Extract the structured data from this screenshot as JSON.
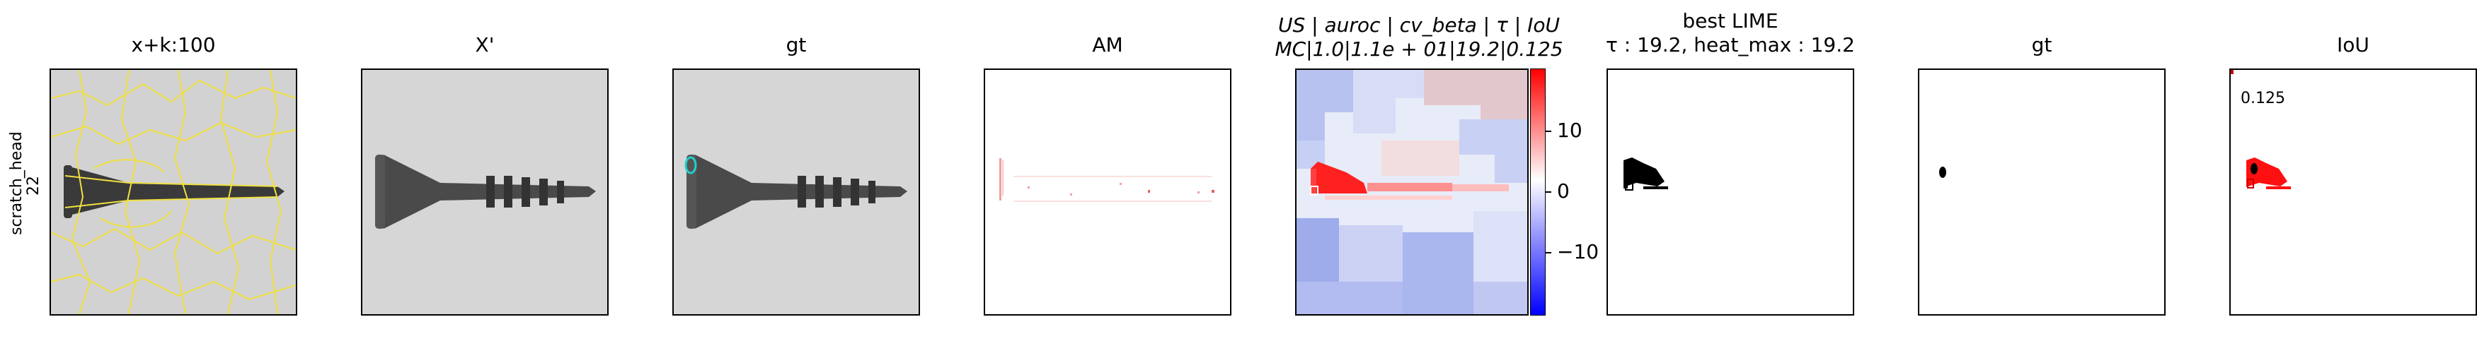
{
  "row_label": {
    "name": "scratch_head",
    "index": "22"
  },
  "panels": [
    {
      "title": "x+k:100"
    },
    {
      "title": "X'"
    },
    {
      "title": "gt"
    },
    {
      "title": "AM"
    },
    {
      "title_line1": "US | auroc | cv_beta | τ | IoU",
      "title_line2": "MC|1.0|1.1e + 01|19.2|0.125"
    },
    {
      "title_line1": "best LIME",
      "title_line2": "τ : 19.2, heat_max : 19.2"
    },
    {
      "title": "gt"
    },
    {
      "title": "IoU",
      "overlay_value": "0.125"
    }
  ],
  "colorbar": {
    "ticks": [
      "10",
      "0",
      "−10"
    ],
    "colors": [
      "#0000ff",
      "#ffffff",
      "#ff0000"
    ]
  }
}
